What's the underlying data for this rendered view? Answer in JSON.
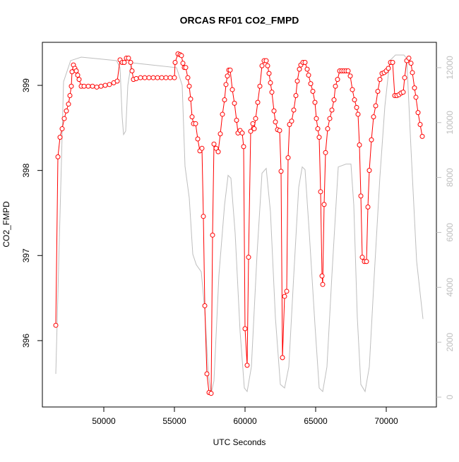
{
  "chart_data": {
    "type": "line",
    "title": "ORCAS RF01 CO2_FMPD",
    "x_label": "UTC Seconds",
    "y_label": "CO2_FMPD",
    "xlim": [
      45650,
      73550
    ],
    "xticks": [
      50000,
      55000,
      60000,
      65000,
      70000
    ],
    "ylim": [
      395.22,
      399.506
    ],
    "yticks": [
      396,
      397,
      398,
      399
    ],
    "y2lim": [
      -359,
      12923
    ],
    "y2ticks": [
      0,
      2000,
      4000,
      6000,
      8000,
      10000,
      12000
    ],
    "series": [
      {
        "color": "#bebebe",
        "axis": "y2",
        "x": [
          46600,
          47150,
          47650,
          48400,
          50900,
          51150,
          51300,
          51400,
          51550,
          51700,
          51950,
          55150,
          55550,
          55750,
          56050,
          56300,
          56550,
          56900,
          57150,
          57400,
          57600,
          57800,
          58150,
          58550,
          58800,
          59000,
          59300,
          59650,
          59950,
          60150,
          60450,
          60850,
          61200,
          61500,
          61800,
          62150,
          62500,
          62800,
          63100,
          63450,
          63800,
          64050,
          64250,
          64550,
          64950,
          65250,
          65500,
          65800,
          66150,
          66600,
          67150,
          67500,
          67700,
          67950,
          68200,
          68500,
          68800,
          69150,
          69550,
          69900,
          70250,
          70650,
          71250,
          71450,
          71750,
          72150,
          72600
        ],
        "values": [
          846,
          11487,
          12256,
          12384,
          12256,
          12000,
          10205,
          9564,
          9692,
          11359,
          12179,
          12000,
          11359,
          8410,
          7256,
          5205,
          4820,
          4564,
          3154,
          846,
          128,
          590,
          4436,
          7000,
          8077,
          7974,
          5974,
          2385,
          333,
          205,
          1103,
          5205,
          8154,
          8333,
          6743,
          2897,
          462,
          333,
          1103,
          4436,
          7641,
          8384,
          8282,
          5974,
          2641,
          333,
          205,
          1103,
          4436,
          8384,
          8487,
          8487,
          7000,
          2897,
          462,
          205,
          1103,
          4436,
          8025,
          10589,
          12256,
          12461,
          12461,
          12333,
          9051,
          4948,
          2846
        ]
      },
      {
        "color": "#ff0000",
        "axis": "y",
        "marker": "circle",
        "x": [
          46600,
          46750,
          46900,
          47050,
          47200,
          47350,
          47500,
          47600,
          47700,
          47750,
          47850,
          47950,
          48050,
          48150,
          48250,
          48400,
          48600,
          48900,
          49200,
          49500,
          49800,
          50100,
          50400,
          50700,
          50950,
          51150,
          51300,
          51450,
          51600,
          51750,
          51900,
          52000,
          52100,
          52300,
          52600,
          52900,
          53200,
          53500,
          53800,
          54100,
          54400,
          54700,
          55000,
          55050,
          55250,
          55400,
          55500,
          55600,
          55700,
          55800,
          55950,
          56050,
          56150,
          56250,
          56350,
          56500,
          56650,
          56800,
          56950,
          57050,
          57150,
          57300,
          57450,
          57600,
          57700,
          57800,
          57950,
          58100,
          58250,
          58400,
          58550,
          58650,
          58750,
          58850,
          58950,
          59100,
          59250,
          59400,
          59500,
          59650,
          59800,
          59900,
          60000,
          60150,
          60250,
          60400,
          60550,
          60650,
          60750,
          60900,
          61050,
          61200,
          61350,
          61500,
          61600,
          61700,
          61800,
          61900,
          62050,
          62150,
          62300,
          62450,
          62550,
          62650,
          62800,
          62950,
          63050,
          63150,
          63300,
          63450,
          63600,
          63700,
          63850,
          63950,
          64100,
          64250,
          64400,
          64500,
          64650,
          64800,
          64950,
          65050,
          65150,
          65250,
          65350,
          65450,
          65500,
          65600,
          65700,
          65850,
          66000,
          66150,
          66300,
          66400,
          66550,
          66700,
          66850,
          67000,
          67150,
          67300,
          67450,
          67600,
          67750,
          67900,
          68000,
          68100,
          68200,
          68300,
          68450,
          68600,
          68700,
          68800,
          68950,
          69100,
          69250,
          69400,
          69550,
          69700,
          69850,
          70000,
          70150,
          70300,
          70450,
          70600,
          70750,
          70900,
          71050,
          71200,
          71300,
          71450,
          71600,
          71750,
          71850,
          72000,
          72100,
          72250,
          72400,
          72550
        ],
        "values": [
          396.18,
          398.16,
          398.39,
          398.49,
          398.61,
          398.7,
          398.78,
          398.88,
          398.99,
          399.16,
          399.24,
          399.2,
          399.17,
          399.12,
          399.07,
          398.99,
          398.99,
          398.99,
          398.99,
          398.98,
          398.99,
          399.0,
          399.01,
          399.03,
          399.05,
          399.3,
          399.27,
          399.27,
          399.32,
          399.32,
          399.27,
          399.17,
          399.07,
          399.08,
          399.09,
          399.09,
          399.09,
          399.09,
          399.09,
          399.09,
          399.09,
          399.09,
          399.09,
          399.27,
          399.37,
          399.36,
          399.35,
          399.26,
          399.21,
          399.21,
          399.09,
          398.99,
          398.84,
          398.63,
          398.55,
          398.55,
          398.37,
          398.23,
          398.26,
          397.46,
          396.41,
          395.61,
          395.39,
          395.38,
          397.24,
          398.31,
          398.26,
          398.22,
          398.43,
          398.66,
          398.83,
          399.01,
          399.11,
          399.18,
          399.18,
          398.95,
          398.79,
          398.59,
          398.44,
          398.47,
          398.44,
          398.28,
          396.14,
          395.71,
          396.98,
          398.46,
          398.55,
          398.49,
          398.61,
          398.8,
          398.99,
          399.23,
          399.29,
          399.29,
          399.23,
          399.14,
          399.03,
          398.92,
          398.7,
          398.57,
          398.48,
          398.47,
          397.99,
          395.8,
          396.52,
          396.58,
          398.15,
          398.54,
          398.58,
          398.71,
          398.88,
          399.05,
          399.19,
          399.24,
          399.27,
          399.27,
          399.19,
          399.12,
          399.02,
          398.93,
          398.8,
          398.61,
          398.49,
          398.39,
          397.75,
          396.76,
          396.66,
          397.6,
          398.21,
          398.49,
          398.61,
          398.71,
          398.83,
          398.99,
          399.07,
          399.17,
          399.17,
          399.17,
          399.17,
          399.17,
          399.11,
          398.95,
          398.83,
          398.74,
          398.66,
          398.3,
          397.7,
          396.98,
          396.93,
          396.93,
          397.57,
          398.0,
          398.36,
          398.63,
          398.76,
          398.93,
          399.07,
          399.14,
          399.15,
          399.17,
          399.2,
          399.27,
          399.27,
          398.88,
          398.88,
          398.89,
          398.91,
          398.92,
          399.09,
          399.29,
          399.32,
          399.26,
          399.15,
          398.97,
          398.86,
          398.68,
          398.54,
          398.4
        ]
      }
    ]
  }
}
